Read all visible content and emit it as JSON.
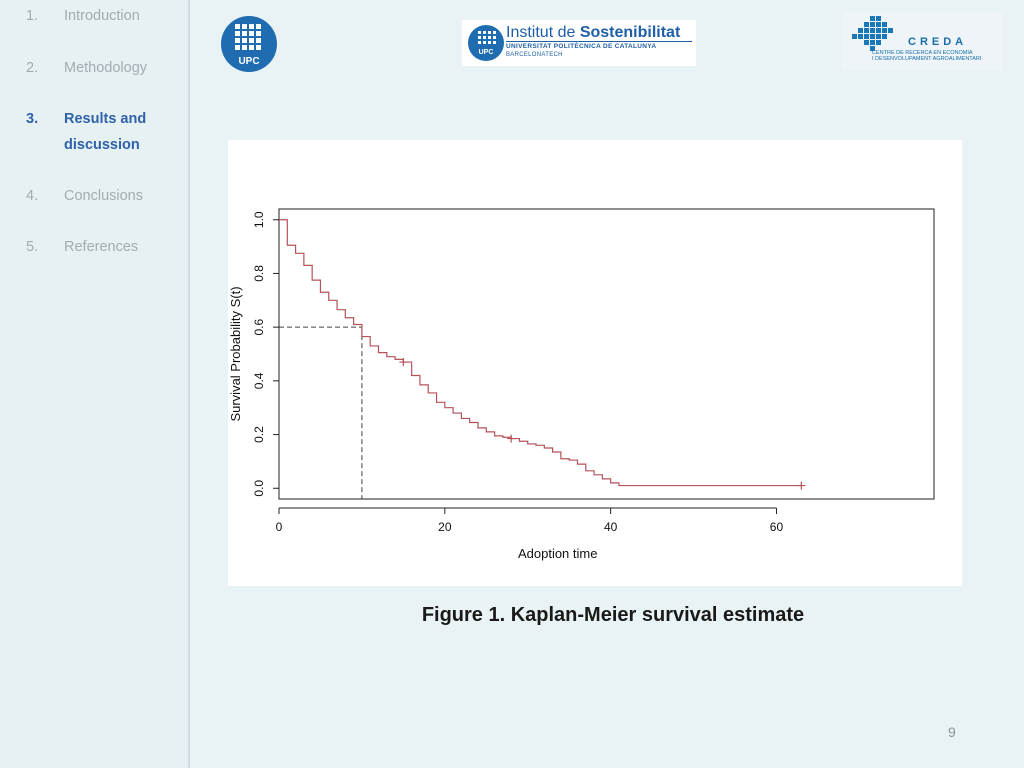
{
  "nav": {
    "items": [
      {
        "num": "1.",
        "label": "Introduction"
      },
      {
        "num": "2.",
        "label": "Methodology"
      },
      {
        "num": "3.",
        "label": "Results and discussion"
      },
      {
        "num": "4.",
        "label": "Conclusions"
      },
      {
        "num": "5.",
        "label": "References"
      }
    ],
    "active_index": 2
  },
  "logos": {
    "upc": {
      "text": "UPC"
    },
    "institut": {
      "line1a": "Institut de ",
      "line1b": "Sostenibilitat",
      "line2": "UNIVERSITAT POLITÈCNICA DE CATALUNYA",
      "line3": "BARCELONATECH",
      "badge": "UPC"
    },
    "creda": {
      "name": "CREDA",
      "sub1": "CENTRE DE RECERCA EN ECONOMIA",
      "sub2": "I DESENVOLUPAMENT AGROALIMENTARI"
    }
  },
  "chart_data": {
    "type": "line",
    "title": "",
    "xlabel": "Adoption time",
    "ylabel": "Survival Probability S(t)",
    "xlim": [
      0,
      79
    ],
    "ylim": [
      -0.04,
      1.04
    ],
    "xticks": [
      0,
      20,
      40,
      60
    ],
    "yticks": [
      0.0,
      0.2,
      0.4,
      0.6,
      0.8,
      1.0
    ],
    "series": [
      {
        "color": "#b5525a",
        "step": true,
        "x": [
          0,
          1,
          2,
          3,
          4,
          5,
          6,
          7,
          8,
          9,
          10,
          11,
          12,
          13,
          14,
          15,
          16,
          17,
          18,
          19,
          20,
          21,
          22,
          23,
          24,
          25,
          26,
          27,
          28,
          29,
          30,
          31,
          32,
          33,
          34,
          35,
          36,
          37,
          38,
          39,
          40,
          41,
          63
        ],
        "y": [
          1.0,
          0.905,
          0.875,
          0.83,
          0.775,
          0.73,
          0.7,
          0.665,
          0.635,
          0.61,
          0.565,
          0.53,
          0.505,
          0.49,
          0.48,
          0.47,
          0.42,
          0.385,
          0.355,
          0.32,
          0.3,
          0.28,
          0.26,
          0.245,
          0.225,
          0.21,
          0.195,
          0.19,
          0.185,
          0.175,
          0.165,
          0.16,
          0.15,
          0.135,
          0.11,
          0.105,
          0.09,
          0.065,
          0.05,
          0.035,
          0.02,
          0.01,
          0.01
        ]
      }
    ],
    "censored": [
      {
        "x": 15,
        "y": 0.47
      },
      {
        "x": 28,
        "y": 0.185
      },
      {
        "x": 63,
        "y": 0.01
      }
    ],
    "median_guide": {
      "x": 10,
      "y": 0.6,
      "style": "dashed"
    }
  },
  "caption": "Figure 1. Kaplan-Meier survival estimate",
  "page_number": "9"
}
